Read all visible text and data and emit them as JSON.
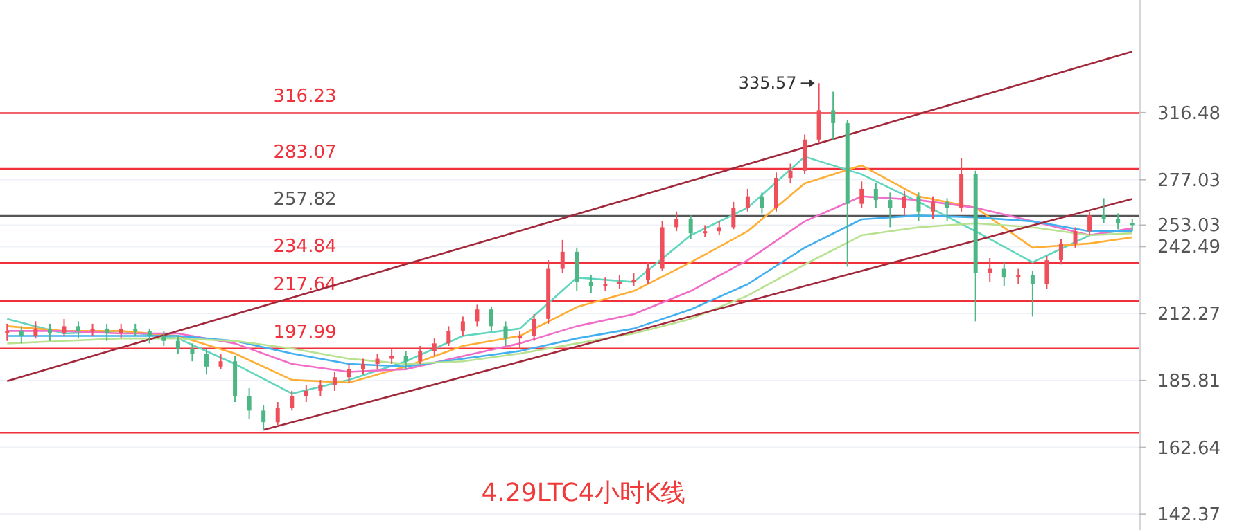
{
  "chart_data": {
    "type": "candlestick",
    "title": "4.29LTC4小时K线",
    "log": true,
    "grid": "y",
    "categories": [
      null,
      null,
      null,
      null,
      null,
      null,
      null,
      null,
      null,
      null,
      null,
      null,
      null,
      null,
      null,
      null,
      null,
      null,
      null,
      null,
      null,
      null,
      null,
      null,
      null,
      null,
      null,
      null,
      null,
      null,
      null,
      null,
      null,
      null,
      null,
      null,
      null,
      null,
      null,
      null,
      null,
      null,
      null,
      null,
      null,
      null,
      null,
      null,
      null,
      null,
      null,
      null,
      null,
      null,
      null,
      null,
      null,
      null,
      null,
      null,
      null,
      null,
      null,
      null,
      null,
      null,
      null,
      null,
      null,
      null,
      null,
      null,
      null,
      null,
      null,
      null,
      null,
      null,
      null,
      null
    ],
    "ohlc": [
      [
        204,
        208,
        201,
        205
      ],
      [
        205,
        207,
        200,
        203
      ],
      [
        203,
        209,
        202,
        206
      ],
      [
        206,
        208,
        201,
        204
      ],
      [
        204,
        210,
        203,
        207
      ],
      [
        207,
        209,
        202,
        205
      ],
      [
        205,
        208,
        203,
        206
      ],
      [
        206,
        208,
        201,
        204
      ],
      [
        204,
        208,
        202,
        206
      ],
      [
        206,
        208,
        203,
        205
      ],
      [
        205,
        206,
        200,
        203
      ],
      [
        203,
        205,
        199,
        201
      ],
      [
        201,
        203,
        196,
        198
      ],
      [
        198,
        200,
        193,
        196
      ],
      [
        196,
        198,
        188,
        191
      ],
      [
        191,
        196,
        190,
        193
      ],
      [
        193,
        195,
        178,
        180
      ],
      [
        180,
        183,
        172,
        175
      ],
      [
        175,
        177,
        168.4,
        171
      ],
      [
        171,
        178,
        170,
        176
      ],
      [
        176,
        182,
        175,
        180
      ],
      [
        180,
        184,
        178,
        182
      ],
      [
        182,
        186,
        180,
        184
      ],
      [
        184,
        189,
        182,
        187
      ],
      [
        187,
        192,
        185,
        190
      ],
      [
        190,
        194,
        188,
        192
      ],
      [
        192,
        196,
        190,
        194
      ],
      [
        194,
        198,
        192,
        195
      ],
      [
        195,
        197,
        190,
        193
      ],
      [
        193,
        199,
        192,
        197
      ],
      [
        197,
        202,
        195,
        200
      ],
      [
        200,
        207,
        199,
        205
      ],
      [
        205,
        211,
        203,
        209
      ],
      [
        209,
        216,
        207,
        214
      ],
      [
        214,
        215,
        205,
        207
      ],
      [
        207,
        209,
        199,
        202
      ],
      [
        202,
        205,
        198,
        203
      ],
      [
        203,
        212,
        201,
        210
      ],
      [
        210,
        236,
        208,
        232
      ],
      [
        232,
        245.7,
        230,
        240
      ],
      [
        240,
        242,
        222,
        226
      ],
      [
        226,
        229,
        221,
        224
      ],
      [
        224,
        228,
        222,
        225
      ],
      [
        225,
        229,
        223,
        226
      ],
      [
        226,
        230,
        224,
        227
      ],
      [
        227,
        235,
        225,
        232
      ],
      [
        232,
        255,
        231,
        252
      ],
      [
        252,
        260,
        250,
        256
      ],
      [
        256,
        258,
        246,
        249
      ],
      [
        249,
        253,
        247,
        250
      ],
      [
        250,
        255,
        248,
        252
      ],
      [
        252,
        265,
        251,
        262
      ],
      [
        262,
        272,
        260,
        268
      ],
      [
        268,
        270,
        259,
        262
      ],
      [
        262,
        281,
        260,
        278
      ],
      [
        278,
        286,
        275,
        282
      ],
      [
        282,
        303,
        280,
        300
      ],
      [
        300,
        335.57,
        298,
        318
      ],
      [
        318,
        330,
        300,
        310
      ],
      [
        310,
        312,
        233,
        264
      ],
      [
        264,
        276,
        262,
        272
      ],
      [
        272,
        275,
        262,
        266
      ],
      [
        266,
        270,
        252,
        262
      ],
      [
        262,
        271,
        258,
        268
      ],
      [
        268,
        270,
        255,
        260
      ],
      [
        260,
        268,
        256,
        265
      ],
      [
        265,
        267,
        255,
        262
      ],
      [
        262,
        289,
        260,
        280
      ],
      [
        280,
        282,
        209,
        230
      ],
      [
        230,
        237,
        226,
        232
      ],
      [
        232,
        235,
        224,
        228
      ],
      [
        228,
        232,
        225,
        229
      ],
      [
        229,
        231,
        211,
        225
      ],
      [
        225,
        238,
        223,
        236
      ],
      [
        236,
        246,
        234,
        244
      ],
      [
        244,
        252,
        242,
        250
      ],
      [
        250,
        260,
        248,
        258
      ],
      [
        258,
        267,
        254,
        256
      ],
      [
        256,
        259,
        251,
        254
      ],
      [
        254,
        256,
        250,
        253.03
      ]
    ],
    "colors": [
      "#ef4f5a",
      "#4cb784",
      "#ef4f5a",
      "#4cb784",
      "#ef4f5a",
      "#4cb784",
      "#ef4f5a",
      "#4cb784",
      "#ef4f5a",
      "#4cb784",
      "#4cb784",
      "#4cb784",
      "#4cb784",
      "#4cb784",
      "#4cb784",
      "#ef4f5a",
      "#4cb784",
      "#4cb784",
      "#4cb784",
      "#ef4f5a",
      "#ef4f5a",
      "#ef4f5a",
      "#ef4f5a",
      "#ef4f5a",
      "#ef4f5a",
      "#ef4f5a",
      "#ef4f5a",
      "#ef4f5a",
      "#4cb784",
      "#ef4f5a",
      "#ef4f5a",
      "#ef4f5a",
      "#ef4f5a",
      "#ef4f5a",
      "#4cb784",
      "#4cb784",
      "#ef4f5a",
      "#ef4f5a",
      "#ef4f5a",
      "#ef4f5a",
      "#4cb784",
      "#4cb784",
      "#ef4f5a",
      "#ef4f5a",
      "#ef4f5a",
      "#ef4f5a",
      "#ef4f5a",
      "#ef4f5a",
      "#4cb784",
      "#ef4f5a",
      "#ef4f5a",
      "#ef4f5a",
      "#ef4f5a",
      "#4cb784",
      "#ef4f5a",
      "#ef4f5a",
      "#ef4f5a",
      "#ef4f5a",
      "#4cb784",
      "#4cb784",
      "#ef4f5a",
      "#4cb784",
      "#4cb784",
      "#ef4f5a",
      "#4cb784",
      "#ef4f5a",
      "#4cb784",
      "#ef4f5a",
      "#4cb784",
      "#ef4f5a",
      "#4cb784",
      "#ef4f5a",
      "#4cb784",
      "#ef4f5a",
      "#ef4f5a",
      "#ef4f5a",
      "#ef4f5a",
      "#4cb784",
      "#4cb784",
      "#4cb784"
    ],
    "series": [
      {
        "type": "line",
        "color": "#5fd6bd",
        "values": [
          210,
          null,
          null,
          null,
          204,
          null,
          null,
          null,
          205,
          null,
          null,
          null,
          202,
          null,
          null,
          null,
          192,
          null,
          null,
          null,
          181,
          null,
          null,
          null,
          186,
          null,
          null,
          null,
          193,
          null,
          null,
          null,
          203,
          null,
          null,
          null,
          206,
          null,
          null,
          null,
          228,
          null,
          null,
          null,
          226,
          null,
          null,
          null,
          248,
          null,
          null,
          null,
          262,
          null,
          null,
          null,
          290,
          null,
          null,
          null,
          280,
          null,
          null,
          null,
          265,
          null,
          null,
          null,
          250,
          null,
          null,
          null,
          235,
          null,
          null,
          null,
          248,
          null,
          null,
          251
        ]
      },
      {
        "type": "line",
        "color": "#ffad33",
        "values": [
          207,
          null,
          null,
          null,
          205,
          null,
          null,
          null,
          205,
          null,
          null,
          null,
          203,
          null,
          null,
          null,
          196,
          null,
          null,
          null,
          186,
          null,
          null,
          null,
          185,
          null,
          null,
          null,
          191,
          null,
          null,
          null,
          199,
          null,
          null,
          null,
          203,
          null,
          null,
          null,
          215,
          null,
          null,
          null,
          222,
          null,
          null,
          null,
          235,
          null,
          null,
          null,
          250,
          null,
          null,
          null,
          275,
          null,
          null,
          null,
          285,
          null,
          null,
          null,
          268,
          null,
          null,
          null,
          262,
          null,
          null,
          null,
          242,
          null,
          null,
          null,
          244,
          null,
          null,
          247
        ]
      },
      {
        "type": "line",
        "color": "#f06ec8",
        "values": [
          205,
          null,
          null,
          null,
          205,
          null,
          null,
          null,
          204,
          null,
          null,
          null,
          204,
          null,
          null,
          null,
          200,
          null,
          null,
          null,
          192,
          null,
          null,
          null,
          189,
          null,
          null,
          null,
          190,
          null,
          null,
          null,
          195,
          null,
          null,
          null,
          200,
          null,
          null,
          null,
          207,
          null,
          null,
          null,
          212,
          null,
          null,
          null,
          222,
          null,
          null,
          null,
          236,
          null,
          null,
          null,
          255,
          null,
          null,
          null,
          268,
          null,
          null,
          null,
          266,
          null,
          null,
          null,
          262,
          null,
          null,
          null,
          255,
          null,
          null,
          null,
          248,
          null,
          null,
          251.5
        ]
      },
      {
        "type": "line",
        "color": "#42b0f0",
        "values": [
          203,
          null,
          null,
          null,
          203,
          null,
          null,
          null,
          203,
          null,
          null,
          null,
          203,
          null,
          null,
          null,
          201,
          null,
          null,
          null,
          196,
          null,
          null,
          null,
          192,
          null,
          null,
          null,
          191,
          null,
          null,
          null,
          194,
          null,
          null,
          null,
          197,
          null,
          null,
          null,
          202,
          null,
          null,
          null,
          206,
          null,
          null,
          null,
          214,
          null,
          null,
          null,
          225,
          null,
          null,
          null,
          242,
          null,
          null,
          null,
          256,
          null,
          null,
          null,
          258,
          null,
          null,
          null,
          257,
          null,
          null,
          null,
          255,
          null,
          null,
          null,
          250,
          null,
          null,
          250
        ]
      },
      {
        "type": "line",
        "color": "#b8e290",
        "values": [
          200,
          null,
          null,
          null,
          201,
          null,
          null,
          null,
          202,
          null,
          null,
          null,
          202,
          null,
          null,
          null,
          201,
          null,
          null,
          null,
          198,
          null,
          null,
          null,
          194,
          null,
          null,
          null,
          192,
          null,
          null,
          null,
          193,
          null,
          null,
          null,
          196,
          null,
          null,
          null,
          200,
          null,
          null,
          null,
          204,
          null,
          null,
          null,
          210,
          null,
          null,
          null,
          220,
          null,
          null,
          null,
          234,
          null,
          null,
          null,
          248,
          null,
          null,
          null,
          252,
          null,
          null,
          null,
          254,
          null,
          null,
          null,
          252,
          null,
          null,
          null,
          248,
          null,
          null,
          249
        ]
      },
      {
        "type": "line",
        "color": "#a0283a",
        "values": [
          185.6,
          null,
          null,
          null,
          null,
          null,
          null,
          null,
          null,
          null,
          null,
          null,
          null,
          null,
          null,
          null,
          null,
          null,
          null,
          null,
          null,
          null,
          null,
          null,
          null,
          null,
          null,
          null,
          null,
          null,
          null,
          null,
          null,
          null,
          null,
          null,
          null,
          null,
          null,
          null,
          null,
          null,
          null,
          null,
          null,
          null,
          null,
          null,
          null,
          null,
          null,
          null,
          null,
          null,
          null,
          null,
          null,
          null,
          null,
          null,
          null,
          null,
          null,
          null,
          null,
          null,
          null,
          null,
          null,
          null,
          null,
          null,
          null,
          null,
          null,
          null,
          null,
          null,
          null,
          357.4
        ]
      },
      {
        "type": "line",
        "color": "#a0283a",
        "values": [
          null,
          null,
          null,
          null,
          null,
          null,
          null,
          null,
          null,
          null,
          null,
          null,
          null,
          null,
          null,
          null,
          null,
          null,
          168.4,
          null,
          null,
          null,
          null,
          null,
          null,
          null,
          null,
          null,
          null,
          null,
          null,
          null,
          null,
          null,
          null,
          null,
          null,
          null,
          null,
          null,
          null,
          null,
          null,
          null,
          null,
          null,
          null,
          null,
          null,
          null,
          null,
          null,
          null,
          null,
          null,
          null,
          null,
          null,
          null,
          null,
          null,
          null,
          null,
          null,
          null,
          null,
          null,
          null,
          null,
          null,
          null,
          null,
          null,
          null,
          null,
          null,
          null,
          null,
          null,
          266.6
        ]
      }
    ],
    "ylim": [
      138,
      396
    ],
    "yticks": [
      142.37,
      162.64,
      185.81,
      212.27,
      242.49,
      {
        "value": 253.03,
        "label": "253.03"
      },
      277.03,
      316.48
    ],
    "ref_lines": [
      {
        "axis": "y",
        "value": 316.23,
        "label": "316.23",
        "color": "#f0303a"
      },
      {
        "axis": "y",
        "value": 283.07,
        "label": "283.07",
        "color": "#f0303a"
      },
      {
        "axis": "y",
        "value": 257.82,
        "label": "257.82",
        "color": "#555555"
      },
      {
        "axis": "y",
        "value": 234.84,
        "label": "234.84",
        "color": "#f0303a"
      },
      {
        "axis": "y",
        "value": 217.64,
        "label": "217.64",
        "color": "#f0303a"
      },
      {
        "axis": "y",
        "value": 197.99,
        "label": "197.99",
        "color": "#f0303a"
      },
      {
        "axis": "y",
        "value": 167.5,
        "label": null,
        "color": "#f0303a"
      }
    ],
    "annotations": [
      "335.57"
    ]
  }
}
